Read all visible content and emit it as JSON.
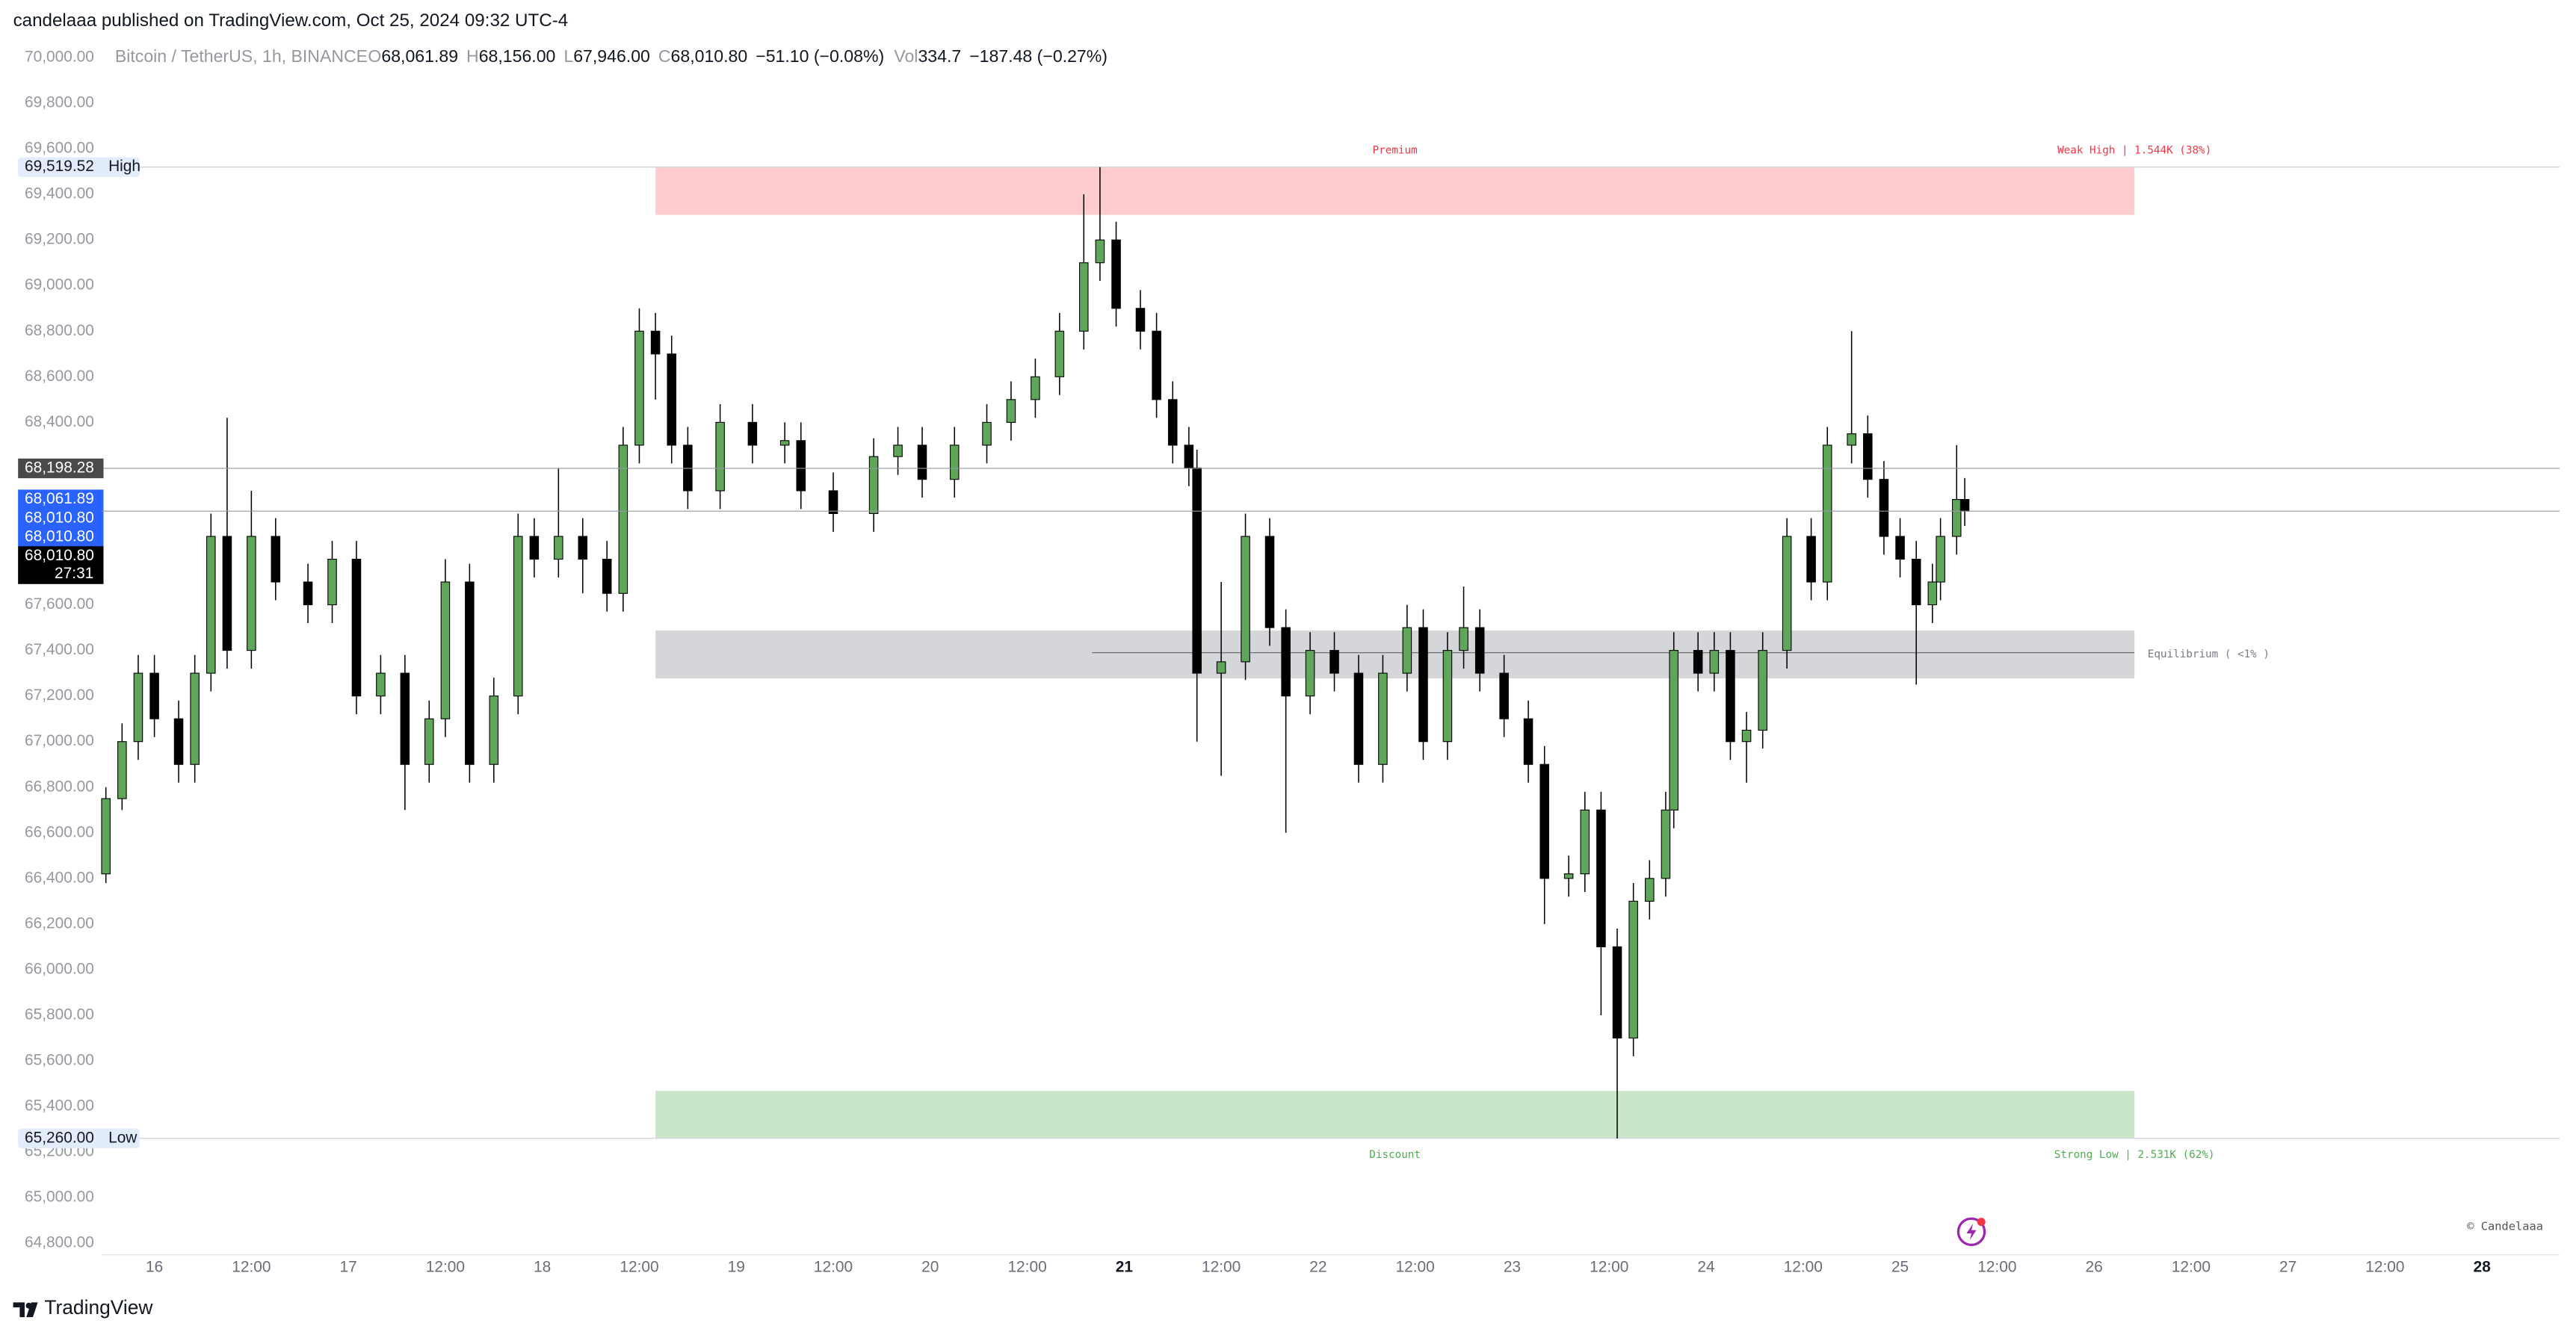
{
  "header": {
    "published": "candelaaa published on TradingView.com, Oct 25, 2024 09:32 UTC-4"
  },
  "legend": {
    "symbol": "Bitcoin / TetherUS, 1h, BINANCE",
    "ohlc": [
      {
        "key": "O",
        "value": "68,061.89"
      },
      {
        "key": "H",
        "value": "68,156.00"
      },
      {
        "key": "L",
        "value": "67,946.00"
      },
      {
        "key": "C",
        "value": "68,010.80"
      }
    ],
    "change": "−51.10 (−0.08%)",
    "vol_key": "Vol",
    "vol": "334.7",
    "vol_change": "−187.48 (−0.27%)"
  },
  "footer": {
    "brand": "TradingView",
    "watermark": "© Candelaaa"
  },
  "chart_data": {
    "type": "candlestick",
    "up_color": "#5fa55a",
    "down_color": "#000000",
    "grid": false,
    "xlim": [
      -6.5,
      297.6
    ],
    "ylim": [
      64764,
      70072
    ],
    "x": [
      -6,
      -4,
      -2,
      0,
      3,
      5,
      7,
      9,
      12,
      15,
      19,
      22,
      25,
      28,
      31,
      34,
      36,
      39,
      42,
      45,
      47,
      50,
      53,
      56,
      58,
      60,
      62,
      64,
      66,
      70,
      74,
      78,
      80,
      84,
      89,
      92,
      95,
      99,
      103,
      106,
      109,
      112,
      115,
      117,
      119,
      122,
      124,
      126,
      128,
      129,
      132,
      135,
      138,
      140,
      143,
      146,
      149,
      152,
      155,
      157,
      160,
      162,
      164,
      167,
      170,
      172,
      175,
      177,
      179,
      181,
      183,
      185,
      187,
      188,
      191,
      193,
      195,
      197,
      199,
      202,
      205,
      207,
      210,
      212,
      214,
      216,
      218,
      220,
      221,
      223,
      224
    ],
    "open": [
      66420,
      66750,
      67000,
      67300,
      67100,
      66900,
      67300,
      67900,
      67400,
      67900,
      67700,
      67600,
      67800,
      67200,
      67300,
      66900,
      67100,
      67700,
      66900,
      67200,
      67900,
      67800,
      67900,
      67800,
      67650,
      68300,
      68800,
      68700,
      68300,
      68100,
      68400,
      68300,
      68320,
      68100,
      68000,
      68250,
      68300,
      68150,
      68300,
      68400,
      68500,
      68600,
      68800,
      69100,
      69200,
      68900,
      68800,
      68500,
      68300,
      68200,
      67300,
      67350,
      67900,
      67500,
      67200,
      67400,
      67300,
      66900,
      67300,
      67500,
      67000,
      67400,
      67500,
      67300,
      67100,
      66900,
      66400,
      66420,
      66700,
      66100,
      65700,
      66300,
      66400,
      66700,
      67400,
      67300,
      67400,
      67000,
      67050,
      67400,
      67900,
      67700,
      68300,
      68350,
      68150,
      67900,
      67800,
      67600,
      67700,
      67900,
      68061.89
    ],
    "high": [
      66800,
      67080,
      67380,
      67380,
      67180,
      67380,
      68000,
      68420,
      68100,
      67980,
      67780,
      67880,
      67880,
      67380,
      67380,
      67180,
      67800,
      67780,
      67280,
      68000,
      67980,
      68200,
      67980,
      67880,
      68380,
      68900,
      68880,
      68780,
      68380,
      68480,
      68480,
      68400,
      68400,
      68180,
      68330,
      68380,
      68380,
      68380,
      68480,
      68580,
      68680,
      68880,
      69400,
      69519.52,
      69280,
      68980,
      68880,
      68580,
      68380,
      68280,
      67700,
      68000,
      67980,
      67580,
      67480,
      67480,
      67380,
      67380,
      67600,
      67580,
      67480,
      67680,
      67580,
      67380,
      67180,
      66980,
      66500,
      66780,
      66780,
      66180,
      66380,
      66480,
      66780,
      67480,
      67480,
      67480,
      67480,
      67130,
      67480,
      67980,
      67980,
      68380,
      68800,
      68430,
      68230,
      67980,
      67880,
      67780,
      67980,
      68300,
      68156
    ],
    "low": [
      66380,
      66700,
      66920,
      67020,
      66820,
      66820,
      67220,
      67320,
      67320,
      67620,
      67520,
      67520,
      67120,
      67120,
      66700,
      66820,
      67020,
      66820,
      66820,
      67120,
      67720,
      67720,
      67650,
      67570,
      67570,
      68220,
      68500,
      68220,
      68020,
      68020,
      68220,
      68220,
      68020,
      67920,
      67920,
      68170,
      68070,
      68070,
      68220,
      68320,
      68420,
      68520,
      68720,
      69020,
      68820,
      68720,
      68420,
      68220,
      68120,
      67000,
      66850,
      67270,
      67420,
      66600,
      67120,
      67220,
      66820,
      66820,
      67220,
      66920,
      66920,
      67320,
      67220,
      67020,
      66820,
      66200,
      66320,
      66340,
      65800,
      65260,
      65620,
      66220,
      66320,
      66620,
      67220,
      67220,
      66920,
      66820,
      66970,
      67320,
      67620,
      67620,
      68220,
      68070,
      67820,
      67720,
      67250,
      67520,
      67620,
      67820,
      67946
    ],
    "close": [
      66750,
      67000,
      67300,
      67100,
      66900,
      67300,
      67900,
      67400,
      67900,
      67700,
      67600,
      67800,
      67200,
      67300,
      66900,
      67100,
      67700,
      66900,
      67200,
      67900,
      67800,
      67900,
      67800,
      67650,
      68300,
      68800,
      68700,
      68300,
      68100,
      68400,
      68300,
      68320,
      68100,
      68000,
      68250,
      68300,
      68150,
      68300,
      68400,
      68500,
      68600,
      68800,
      69100,
      69200,
      68900,
      68800,
      68500,
      68300,
      68200,
      67300,
      67350,
      67900,
      67500,
      67200,
      67400,
      67300,
      66900,
      67300,
      67500,
      67000,
      67400,
      67500,
      67300,
      67100,
      66900,
      66400,
      66420,
      66700,
      66100,
      65700,
      66300,
      66400,
      66700,
      67400,
      67300,
      67400,
      67000,
      67050,
      67400,
      67900,
      67700,
      68300,
      68350,
      68150,
      67900,
      67800,
      67600,
      67700,
      67900,
      68061.89,
      68010.8
    ],
    "yticks": [
      {
        "value": 64800,
        "label": "64,800.00"
      },
      {
        "value": 65000,
        "label": "65,000.00"
      },
      {
        "value": 65200,
        "label": "65,200.00"
      },
      {
        "value": 65400,
        "label": "65,400.00"
      },
      {
        "value": 65600,
        "label": "65,600.00"
      },
      {
        "value": 65800,
        "label": "65,800.00"
      },
      {
        "value": 66000,
        "label": "66,000.00"
      },
      {
        "value": 66200,
        "label": "66,200.00"
      },
      {
        "value": 66400,
        "label": "66,400.00"
      },
      {
        "value": 66600,
        "label": "66,600.00"
      },
      {
        "value": 66800,
        "label": "66,800.00"
      },
      {
        "value": 67000,
        "label": "67,000.00"
      },
      {
        "value": 67200,
        "label": "67,200.00"
      },
      {
        "value": 67400,
        "label": "67,400.00"
      },
      {
        "value": 67600,
        "label": "67,600.00"
      },
      {
        "value": 67800,
        "label": "67,800.00"
      },
      {
        "value": 68000,
        "label": "68,000.00"
      },
      {
        "value": 68200,
        "label": "68,200.00"
      },
      {
        "value": 68400,
        "label": "68,400.00"
      },
      {
        "value": 68600,
        "label": "68,600.00"
      },
      {
        "value": 68800,
        "label": "68,800.00"
      },
      {
        "value": 69000,
        "label": "69,000.00"
      },
      {
        "value": 69200,
        "label": "69,200.00"
      },
      {
        "value": 69400,
        "label": "69,400.00"
      },
      {
        "value": 69600,
        "label": "69,600.00"
      },
      {
        "value": 69800,
        "label": "69,800.00"
      },
      {
        "value": 70000,
        "label": "70,000.00"
      }
    ],
    "xticks": [
      {
        "value": 0,
        "label": "16"
      },
      {
        "value": 12,
        "label": "12:00"
      },
      {
        "value": 24,
        "label": "17"
      },
      {
        "value": 36,
        "label": "12:00"
      },
      {
        "value": 48,
        "label": "18"
      },
      {
        "value": 60,
        "label": "12:00"
      },
      {
        "value": 72,
        "label": "19"
      },
      {
        "value": 84,
        "label": "12:00"
      },
      {
        "value": 96,
        "label": "20"
      },
      {
        "value": 108,
        "label": "12:00"
      },
      {
        "value": 120,
        "label": "21",
        "bold": true
      },
      {
        "value": 132,
        "label": "12:00"
      },
      {
        "value": 144,
        "label": "22"
      },
      {
        "value": 156,
        "label": "12:00"
      },
      {
        "value": 168,
        "label": "23"
      },
      {
        "value": 180,
        "label": "12:00"
      },
      {
        "value": 192,
        "label": "24"
      },
      {
        "value": 204,
        "label": "12:00"
      },
      {
        "value": 216,
        "label": "25"
      },
      {
        "value": 228,
        "label": "12:00"
      },
      {
        "value": 240,
        "label": "26"
      },
      {
        "value": 252,
        "label": "12:00"
      },
      {
        "value": 264,
        "label": "27"
      },
      {
        "value": 276,
        "label": "12:00"
      },
      {
        "value": 288,
        "label": "28",
        "bold": true
      }
    ],
    "zones": [
      {
        "name": "Premium",
        "side_label": "Weak High | 1.544K (38%)",
        "start": 62,
        "end": 245,
        "top": 69519.52,
        "bottom": 69310,
        "color": "#ffcdd0",
        "text_color": "#f23645",
        "label_pos": "above"
      },
      {
        "name": "Equilibrium  ( <1% )",
        "start": 62,
        "end": 245,
        "top": 67487,
        "bottom": 67277,
        "color": "#d5d6da",
        "text_color": "#787b86",
        "label_pos": "right",
        "midline": 67390,
        "midline_start": 116
      },
      {
        "name": "Discount",
        "side_label": "Strong Low | 2.531K (62%)",
        "start": 62,
        "end": 245,
        "top": 65468,
        "bottom": 65260,
        "color": "#c8e6c9",
        "text_color": "#4caf50",
        "label_pos": "below"
      }
    ],
    "level_labels": [
      {
        "value": 69519.52,
        "label": "69,519.52",
        "tag": "High"
      },
      {
        "value": 65260,
        "label": "65,260.00",
        "tag": "Low"
      }
    ],
    "price_markers": [
      {
        "value": 68198.28,
        "label": "68,198.28",
        "bg": "#4a4a4a",
        "line": true
      },
      {
        "value": 68061.89,
        "label": "68,061.89",
        "bg": "#2962ff"
      },
      {
        "value": 68010.8,
        "label": "68,010.80",
        "bg": "#2962ff"
      },
      {
        "value": 68010.8,
        "label": "68,010.80",
        "bg": "#2962ff"
      },
      {
        "value": 68010.8,
        "label": "68,010.80",
        "bg": "#000000",
        "countdown": "27:31",
        "line": true
      }
    ]
  }
}
